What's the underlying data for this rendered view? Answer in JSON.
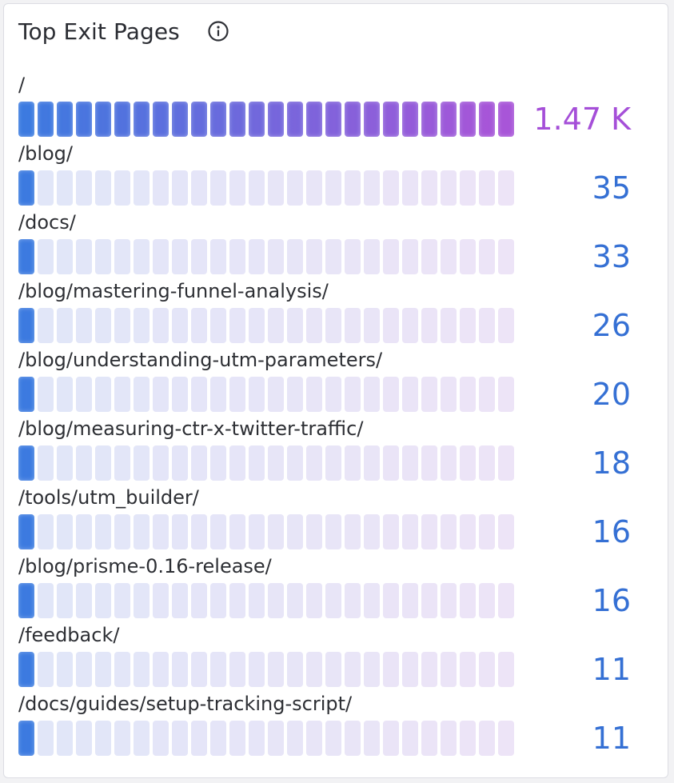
{
  "panel": {
    "title": "Top Exit Pages",
    "info_icon": "info-icon"
  },
  "colors": {
    "blue": "#3a7be0",
    "purple": "#a855d8",
    "track_blue": "#e0e6f8",
    "track_purple": "#ede4f7",
    "value_blue": "#3570d4",
    "value_purple": "#a54fd8"
  },
  "chart_data": {
    "type": "bar",
    "categories": [
      "/",
      "/blog/",
      "/docs/",
      "/blog/mastering-funnel-analysis/",
      "/blog/understanding-utm-parameters/",
      "/blog/measuring-ctr-x-twitter-traffic/",
      "/tools/utm_builder/",
      "/blog/prisme-0.16-release/",
      "/feedback/",
      "/docs/guides/setup-tracking-script/"
    ],
    "values": [
      1470,
      35,
      33,
      26,
      20,
      18,
      16,
      16,
      11,
      11
    ],
    "value_labels": [
      "1.47 K",
      "35",
      "33",
      "26",
      "20",
      "18",
      "16",
      "16",
      "11",
      "11"
    ],
    "segments": 26
  }
}
